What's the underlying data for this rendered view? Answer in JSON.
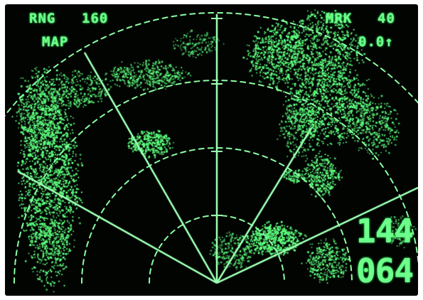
{
  "display": {
    "range_label": "RNG",
    "range_value": "160",
    "mode": "MAP",
    "marker_label": "MRK",
    "marker_value": "40",
    "tilt": "0.0↑",
    "readout_top": "144",
    "readout_bottom": "064"
  },
  "colors": {
    "phosphor": "#6dff8c",
    "background": "#020402"
  }
}
